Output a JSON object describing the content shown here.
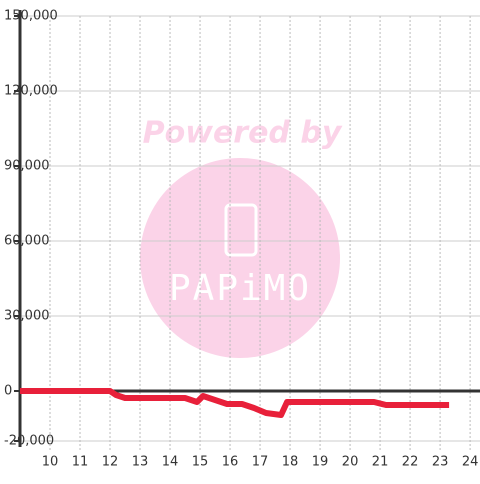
{
  "chart_data": {
    "type": "line",
    "watermark": {
      "text": "Powered by",
      "logo": "PAPiMO"
    },
    "x": [
      9,
      12,
      12.2,
      12.5,
      13,
      14.5,
      14.9,
      15.1,
      15.5,
      15.9,
      16.4,
      16.8,
      17.2,
      17.7,
      17.9,
      18.5,
      20.8,
      21.2,
      23.3
    ],
    "series": [
      {
        "color": "#e8203a",
        "values": [
          0,
          0,
          -1600,
          -2800,
          -2800,
          -2800,
          -4400,
          -2000,
          -3600,
          -5200,
          -5200,
          -6800,
          -8800,
          -9600,
          -4400,
          -4400,
          -4400,
          -5600,
          -5600
        ]
      }
    ],
    "xlim": [
      9,
      24.33
    ],
    "xticks": [
      10,
      11,
      12,
      13,
      14,
      15,
      16,
      17,
      18,
      19,
      20,
      21,
      22,
      23,
      24
    ],
    "ylim": [
      -20000,
      150000
    ],
    "yticks": [
      {
        "value": -20000,
        "label": "-20,000"
      },
      0,
      {
        "value": 30000,
        "label": "30,000"
      },
      {
        "value": 60000,
        "label": "60,000"
      },
      {
        "value": 90000,
        "label": "90,000"
      },
      {
        "value": 120000,
        "label": "120,000"
      },
      {
        "value": 150000,
        "label": "150,000"
      }
    ],
    "grid": true
  }
}
